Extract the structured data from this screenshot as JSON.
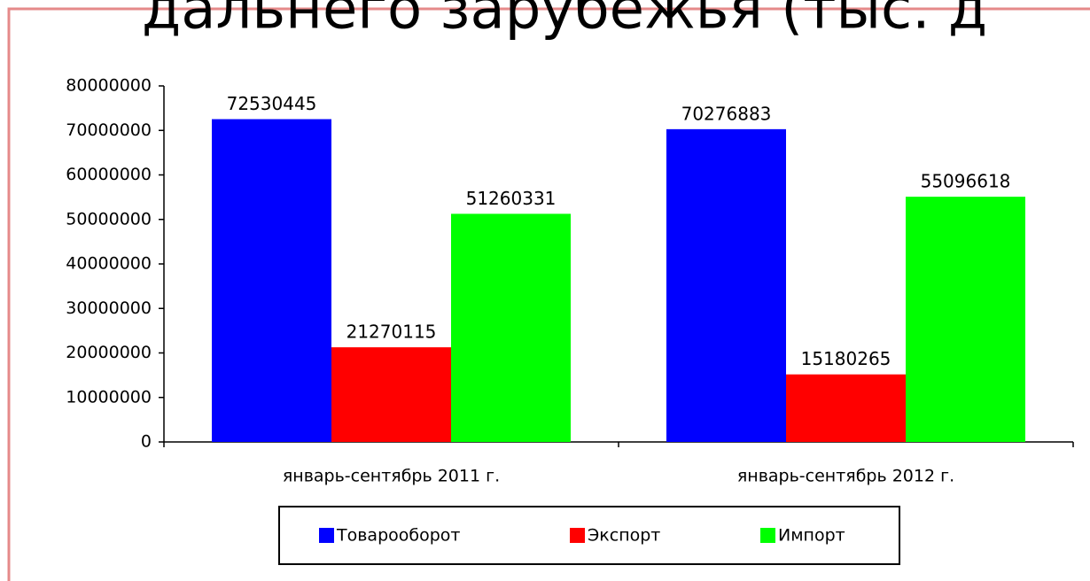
{
  "chart_data": {
    "type": "bar",
    "title": "дальнего зарубежья (тыс. д",
    "categories": [
      "январь-сентябрь 2011 г.",
      "январь-сентябрь 2012 г."
    ],
    "series": [
      {
        "name": "Товарооборот",
        "color": "#0000ff",
        "values": [
          72530445,
          70276883
        ]
      },
      {
        "name": "Экспорт",
        "color": "#ff0000",
        "values": [
          21270115,
          15180265
        ]
      },
      {
        "name": "Импорт",
        "color": "#00ff00",
        "values": [
          51260331,
          55096618
        ]
      }
    ],
    "ylim": [
      0,
      80000000
    ],
    "yticks": [
      0,
      10000000,
      20000000,
      30000000,
      40000000,
      50000000,
      60000000,
      70000000,
      80000000
    ],
    "legend": "bottom"
  }
}
